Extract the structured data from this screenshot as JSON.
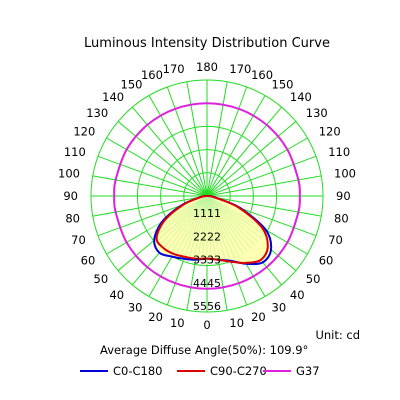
{
  "chart_data": {
    "type": "polar",
    "title": "Luminous Intensity Distribution Curve",
    "unit_text": "Unit: cd",
    "average_text": "Average Diffuse Angle(50%): 109.9°",
    "angle_labels_left": [
      "0",
      "10",
      "20",
      "30",
      "40",
      "50",
      "60",
      "70",
      "80",
      "90",
      "100",
      "110",
      "120",
      "130",
      "140",
      "150",
      "160",
      "170"
    ],
    "angle_labels_right": [
      "180",
      "170",
      "160",
      "150",
      "140",
      "130",
      "120",
      "110",
      "100",
      "90",
      "80",
      "70",
      "60",
      "50",
      "40",
      "30",
      "20",
      "10",
      "0"
    ],
    "angle_values_left": [
      0,
      10,
      20,
      30,
      40,
      50,
      60,
      70,
      80,
      90,
      100,
      110,
      120,
      130,
      140,
      150,
      160,
      170
    ],
    "angle_values_right": [
      180,
      170,
      160,
      150,
      140,
      130,
      120,
      110,
      100,
      90,
      80,
      70,
      60,
      50,
      40,
      30,
      20,
      10,
      0
    ],
    "ring_labels": [
      "1111",
      "2222",
      "3333",
      "4445",
      "5556"
    ],
    "ring_values": [
      1111,
      2222,
      3333,
      4445,
      5556
    ],
    "r_max": 5556,
    "grid": true,
    "legend_position": "bottom",
    "colors": {
      "grid": "#22dd22",
      "fill": "#ffffb3",
      "c0": "#0000dd",
      "c90": "#dd0000",
      "g37": "#dd22dd"
    },
    "series": [
      {
        "name": "C0-C180",
        "angles_left": [
          0,
          10,
          20,
          30,
          40,
          50,
          60,
          70,
          80,
          90
        ],
        "values_left": [
          3000,
          3100,
          3200,
          3350,
          3550,
          3300,
          2500,
          1300,
          300,
          0
        ],
        "angles_right": [
          0,
          10,
          20,
          30,
          40,
          50,
          60,
          70,
          80,
          90
        ],
        "values_right": [
          3000,
          3100,
          3300,
          3750,
          4150,
          4000,
          3250,
          1700,
          400,
          0
        ]
      },
      {
        "name": "C90-C270",
        "angles_left": [
          0,
          10,
          20,
          30,
          40,
          50,
          60,
          70,
          80,
          90
        ],
        "values_left": [
          3000,
          3050,
          3100,
          3200,
          3250,
          3150,
          2350,
          1200,
          300,
          0
        ],
        "angles_right": [
          0,
          10,
          20,
          30,
          40,
          50,
          60,
          70,
          80,
          90
        ],
        "values_right": [
          3000,
          3100,
          3350,
          3700,
          4000,
          3800,
          3050,
          1600,
          350,
          0
        ]
      },
      {
        "name": "G37",
        "angles": [
          0,
          20,
          40,
          60,
          80,
          90,
          100,
          120,
          140,
          160,
          180
        ],
        "values": [
          4445,
          4445,
          4445,
          4445,
          4445,
          4445,
          4445,
          4445,
          4445,
          4445,
          4445
        ]
      }
    ]
  }
}
